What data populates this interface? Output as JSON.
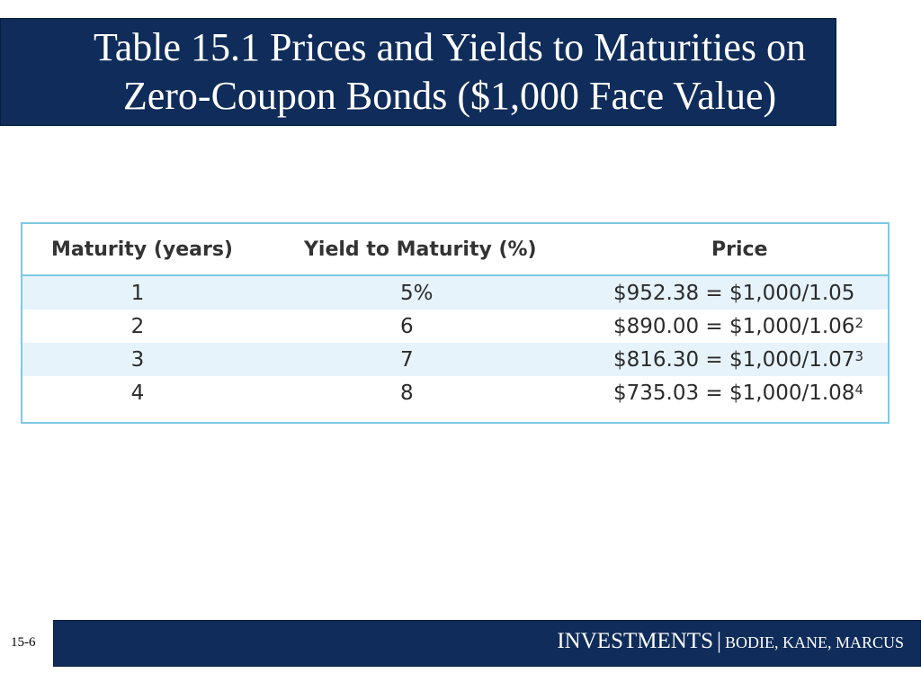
{
  "title": {
    "line1": "Table 15.1 Prices and Yields to Maturities on",
    "line2": "Zero-Coupon Bonds ($1,000 Face Value)"
  },
  "table": {
    "headers": [
      "Maturity (years)",
      "Yield to Maturity (%)",
      "Price"
    ],
    "rows": [
      {
        "maturity": "1",
        "yield": "5%",
        "price": "$952.38 = $1,000/1.05",
        "exponent": ""
      },
      {
        "maturity": "2",
        "yield": "6",
        "price": "$890.00 = $1,000/1.06",
        "exponent": "2"
      },
      {
        "maturity": "3",
        "yield": "7",
        "price": "$816.30 = $1,000/1.07",
        "exponent": "3"
      },
      {
        "maturity": "4",
        "yield": "8",
        "price": "$735.03 = $1,000/1.08",
        "exponent": "4"
      }
    ]
  },
  "footer": {
    "brand": "INVESTMENTS",
    "separator": "|",
    "authors": "BODIE, KANE, MARCUS"
  },
  "slide_number": "15-6",
  "colors": {
    "navy": "#0f2c5a",
    "table_border": "#7ec8e6",
    "row_shade": "#e6f3fb"
  }
}
